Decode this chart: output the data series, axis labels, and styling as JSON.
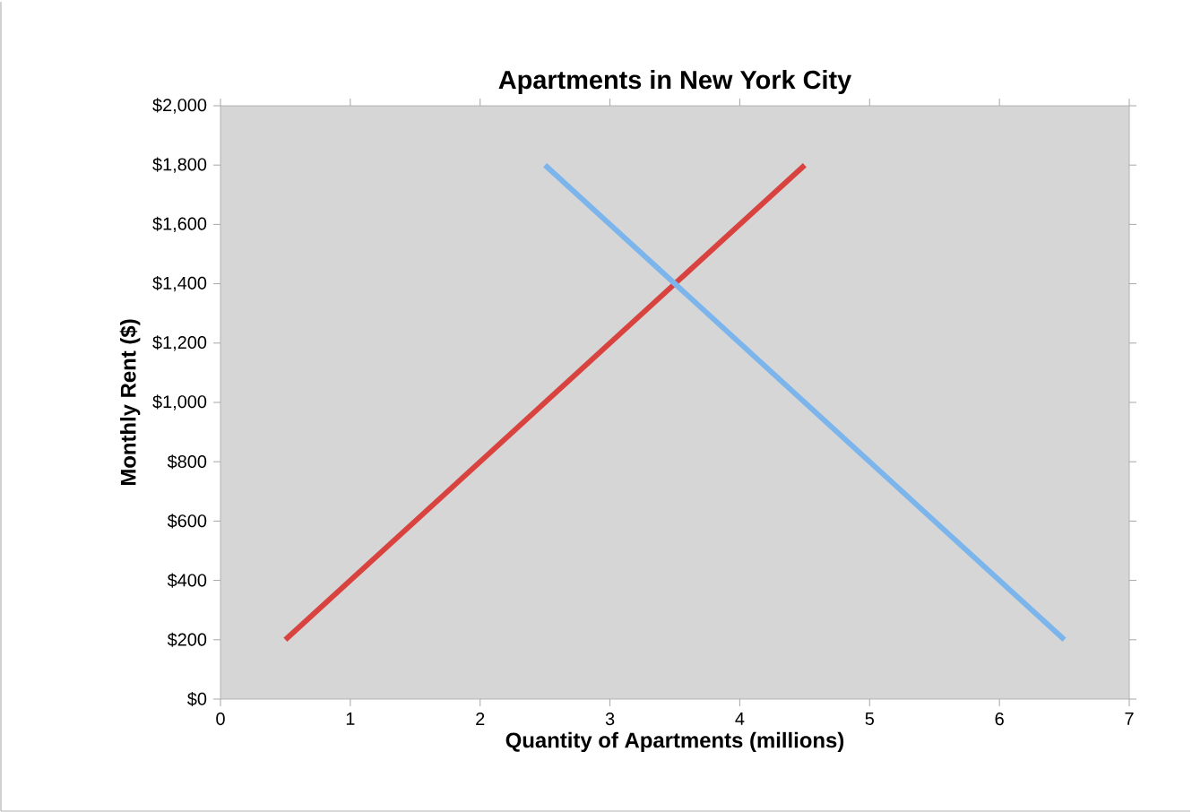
{
  "chart_data": {
    "type": "line",
    "title": "Apartments in New York City",
    "xlabel": "Quantity of Apartments (millions)",
    "ylabel": "Monthly Rent ($)",
    "series": [
      {
        "color": "#d9433f",
        "x": [
          0.5,
          4.5
        ],
        "values": [
          200,
          1800
        ]
      },
      {
        "color": "#7cb5ec",
        "x": [
          2.5,
          6.5
        ],
        "values": [
          1800,
          200
        ]
      }
    ],
    "xlim": [
      0,
      7
    ],
    "xticks": [
      0,
      1,
      2,
      3,
      4,
      5,
      6,
      7
    ],
    "ylim": [
      0,
      2000
    ],
    "yticks": [
      {
        "value": 0,
        "label": "$0"
      },
      {
        "value": 200,
        "label": "$200"
      },
      {
        "value": 400,
        "label": "$400"
      },
      {
        "value": 600,
        "label": "$600"
      },
      {
        "value": 800,
        "label": "$800"
      },
      {
        "value": 1000,
        "label": "$1,000"
      },
      {
        "value": 1200,
        "label": "$1,200"
      },
      {
        "value": 1400,
        "label": "$1,400"
      },
      {
        "value": 1600,
        "label": "$1,600"
      },
      {
        "value": 1800,
        "label": "$1,800"
      },
      {
        "value": 2000,
        "label": "$2,000"
      }
    ],
    "grid": false,
    "marker": "none",
    "line_style": "solid"
  }
}
